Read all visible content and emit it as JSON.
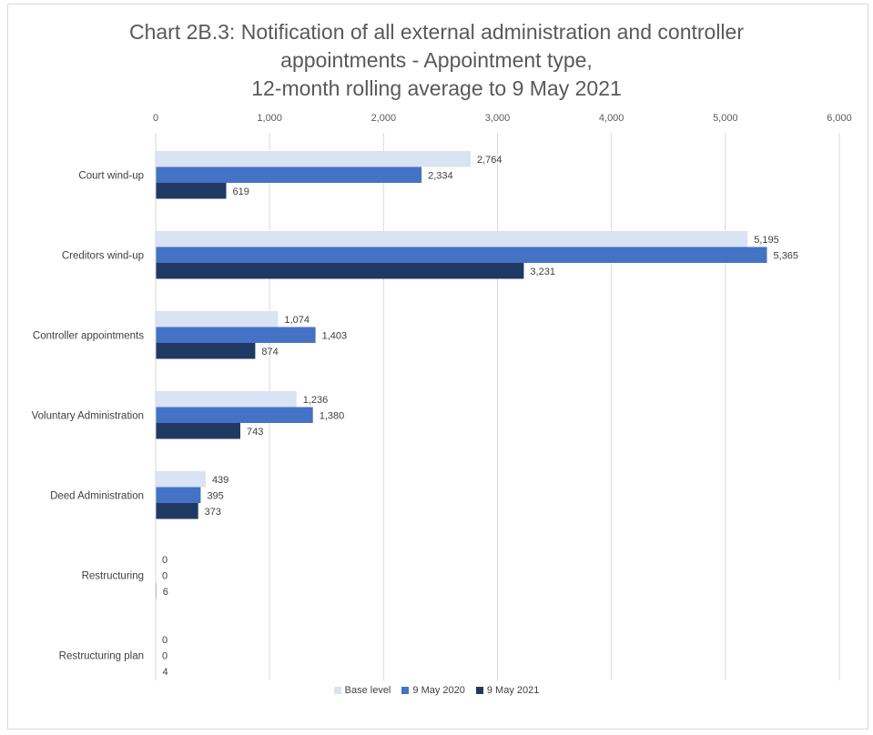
{
  "title_lines": [
    "Chart 2B.3: Notification of all external administration and controller",
    "appointments - Appointment type,",
    "12-month rolling average to 9 May 2021"
  ],
  "chart_data": {
    "type": "bar",
    "orientation": "horizontal",
    "title": "Chart 2B.3: Notification of all external administration and controller appointments - Appointment type, 12-month rolling average to 9 May 2021",
    "categories": [
      "Court wind-up",
      "Creditors wind-up",
      "Controller appointments",
      "Voluntary Administration",
      "Deed Administration",
      "Restructuring",
      "Restructuring plan"
    ],
    "series": [
      {
        "name": "Base level",
        "color": "#dae3f3",
        "values": [
          2764,
          5195,
          1074,
          1236,
          439,
          0,
          0
        ]
      },
      {
        "name": "9 May 2020",
        "color": "#4472c4",
        "values": [
          2334,
          5365,
          1403,
          1380,
          395,
          0,
          0
        ]
      },
      {
        "name": "9 May 2021",
        "color": "#203864",
        "values": [
          619,
          3231,
          874,
          743,
          373,
          6,
          4
        ]
      }
    ],
    "xlim": [
      0,
      6000
    ],
    "xticks": [
      "0",
      "1,000",
      "2,000",
      "3,000",
      "4,000",
      "5,000",
      "6,000"
    ],
    "xaxis_position": "top",
    "grid": true,
    "legend_position": "bottom"
  }
}
